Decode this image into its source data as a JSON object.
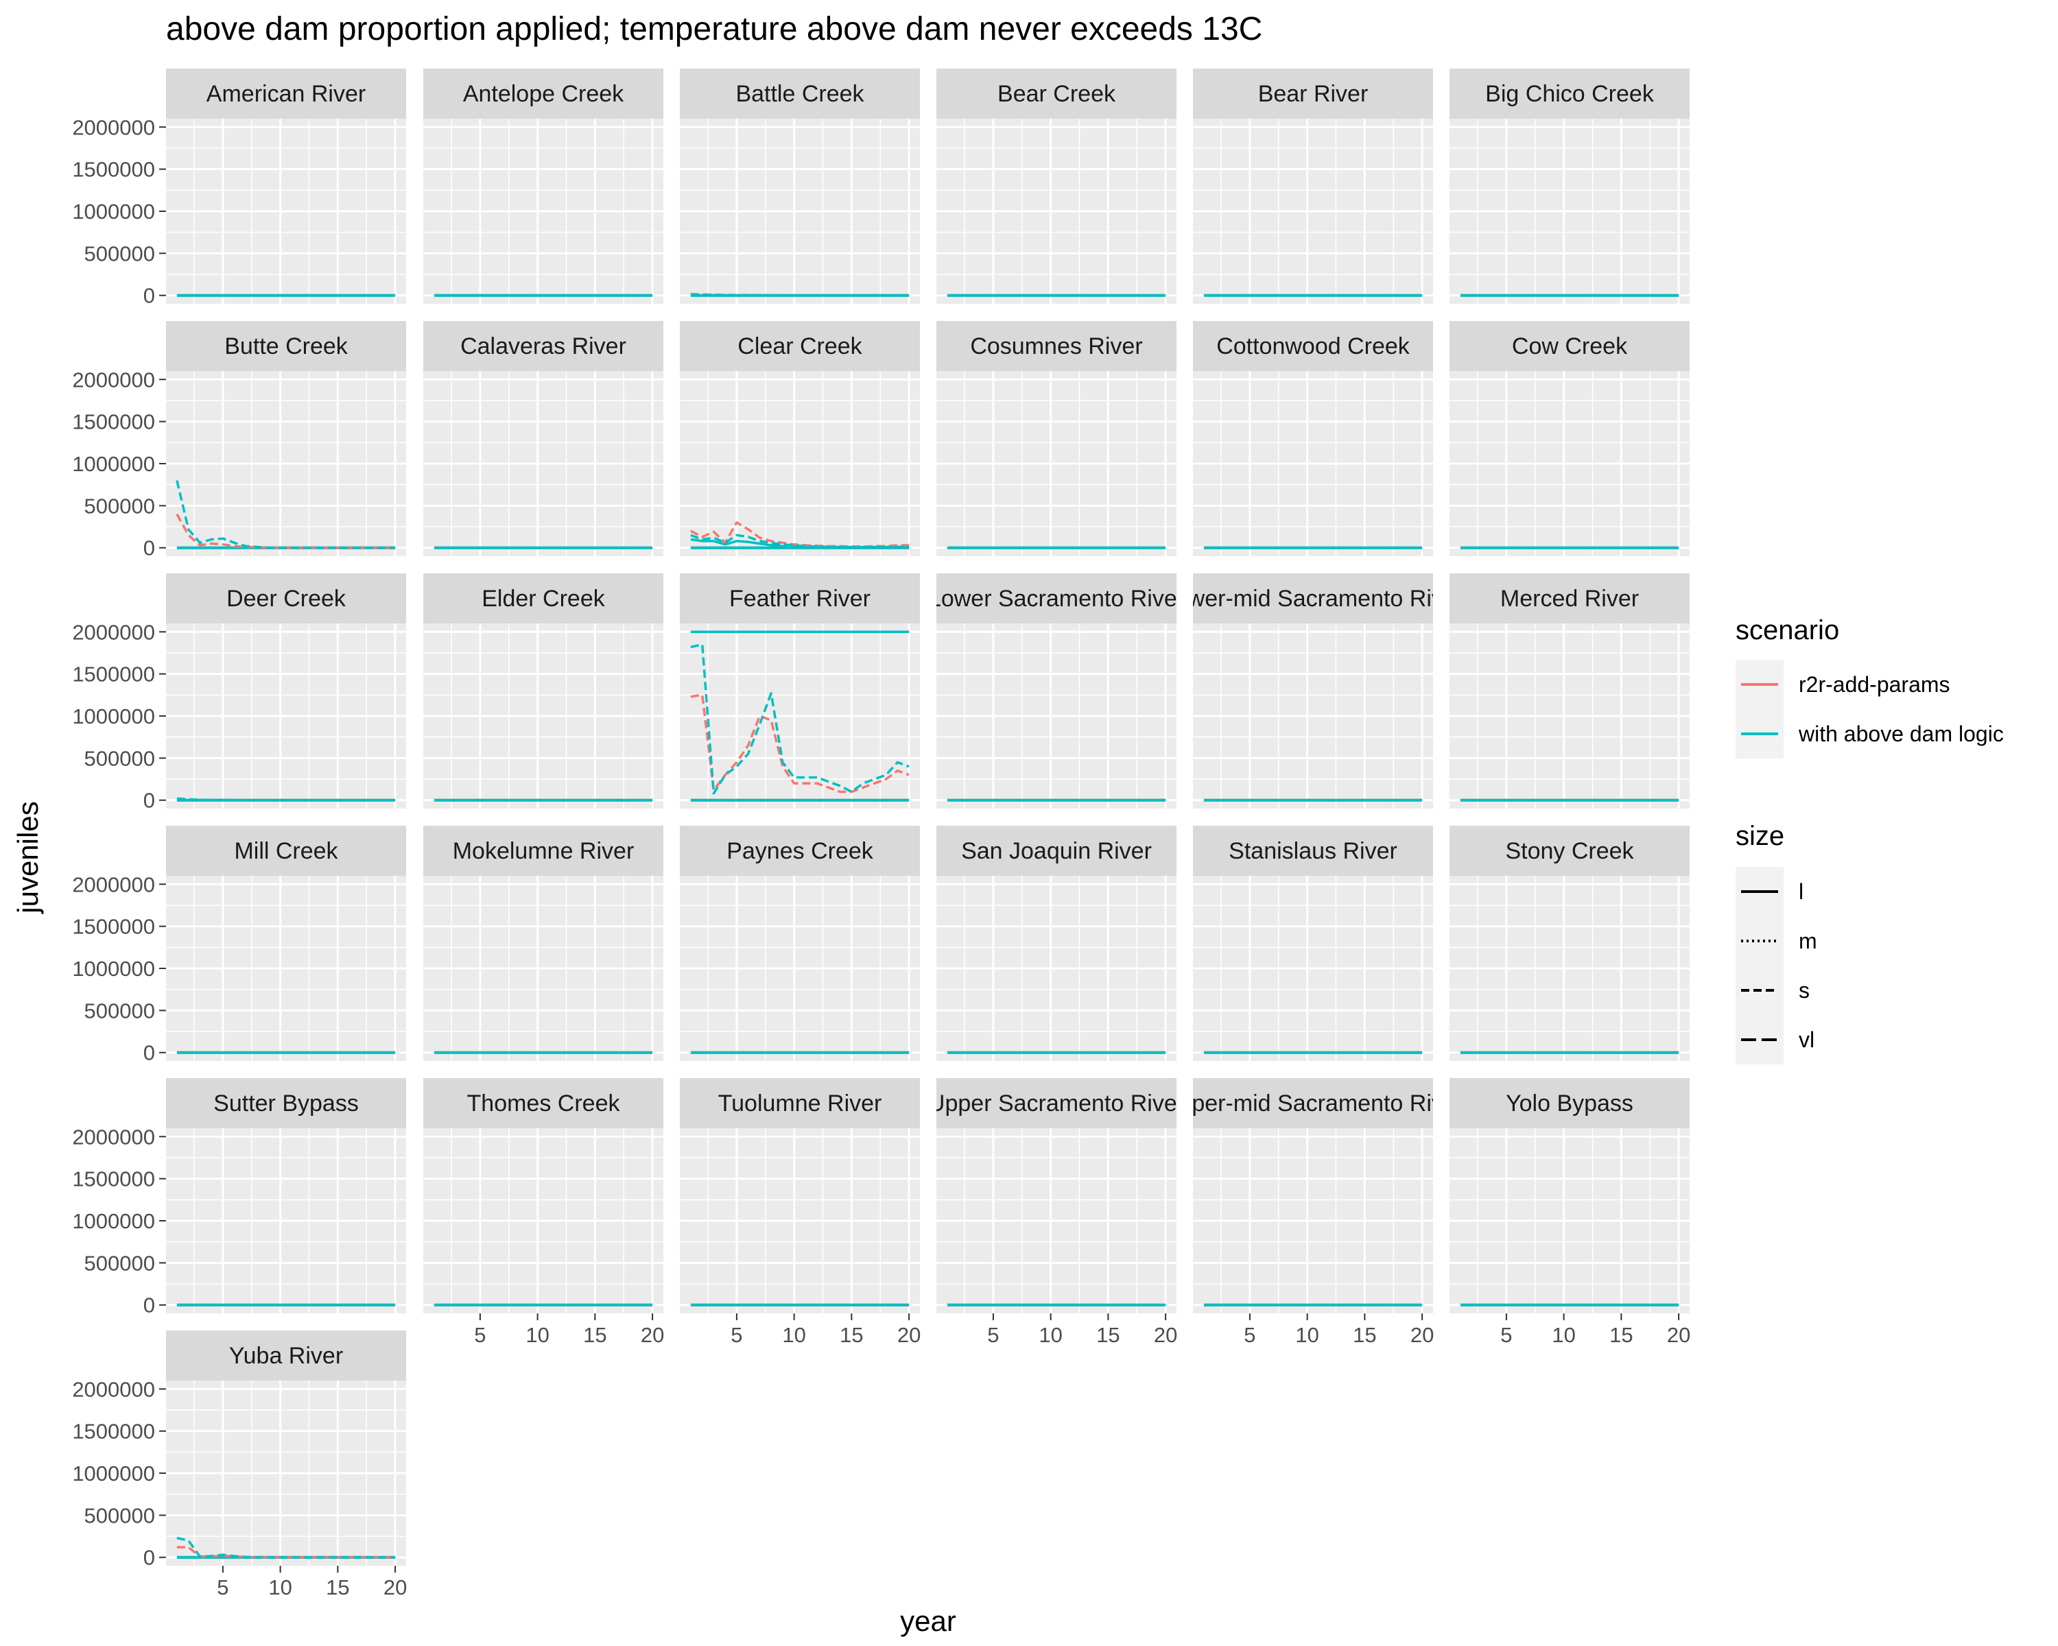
{
  "chart_data": {
    "type": "line",
    "title": "above dam proportion applied; temperature above dam never exceeds 13C",
    "xlabel": "year",
    "ylabel": "juveniles",
    "xlim": [
      0.05,
      20.95
    ],
    "ylim": [
      -100000,
      2100000
    ],
    "x_ticks": [
      5,
      10,
      15,
      20
    ],
    "y_ticks": [
      0,
      500000,
      1000000,
      1500000,
      2000000
    ],
    "grid": true,
    "facet_columns": 6,
    "legend_placement": "right",
    "legends": {
      "scenario": {
        "title": "scenario",
        "entries": [
          {
            "label": "r2r-add-params",
            "color": "#F8766D"
          },
          {
            "label": "with above dam logic",
            "color": "#00BFC4"
          }
        ]
      },
      "size": {
        "title": "size",
        "entries": [
          {
            "label": "l",
            "dash": "solid"
          },
          {
            "label": "m",
            "dash": "dotted"
          },
          {
            "label": "s",
            "dash": "dashed"
          },
          {
            "label": "vl",
            "dash": "longdash"
          }
        ]
      }
    },
    "panels": [
      {
        "name": "American River",
        "series": []
      },
      {
        "name": "Antelope Creek",
        "series": []
      },
      {
        "name": "Battle Creek",
        "series": [
          {
            "scenario": "with above dam logic",
            "size": "s",
            "x": [
              1,
              2,
              3,
              4,
              5,
              6,
              7,
              8,
              9,
              10,
              11,
              12,
              13,
              14,
              15,
              16,
              17,
              18,
              19,
              20
            ],
            "y": [
              15000,
              10000,
              8000,
              5000,
              4000,
              3000,
              2000,
              1000,
              0,
              0,
              0,
              0,
              0,
              0,
              0,
              0,
              0,
              0,
              0,
              0
            ]
          }
        ]
      },
      {
        "name": "Bear Creek",
        "series": []
      },
      {
        "name": "Bear River",
        "series": []
      },
      {
        "name": "Big Chico Creek",
        "series": []
      },
      {
        "name": "Butte Creek",
        "series": [
          {
            "scenario": "r2r-add-params",
            "size": "s",
            "x": [
              1,
              2,
              3,
              4,
              5,
              6,
              7,
              8,
              9,
              10,
              11,
              12,
              13,
              14,
              15,
              16,
              17,
              18,
              19,
              20
            ],
            "y": [
              400000,
              150000,
              30000,
              50000,
              40000,
              20000,
              10000,
              5000,
              0,
              0,
              0,
              0,
              0,
              0,
              0,
              0,
              0,
              0,
              0,
              0
            ]
          },
          {
            "scenario": "with above dam logic",
            "size": "s",
            "x": [
              1,
              2,
              3,
              4,
              5,
              6,
              7,
              8,
              9,
              10,
              11,
              12,
              13,
              14,
              15,
              16,
              17,
              18,
              19,
              20
            ],
            "y": [
              800000,
              220000,
              60000,
              100000,
              110000,
              60000,
              20000,
              10000,
              0,
              0,
              0,
              0,
              0,
              0,
              0,
              0,
              0,
              0,
              0,
              0
            ]
          }
        ]
      },
      {
        "name": "Calaveras River",
        "series": []
      },
      {
        "name": "Clear Creek",
        "series": [
          {
            "scenario": "r2r-add-params",
            "size": "s",
            "x": [
              1,
              2,
              3,
              4,
              5,
              6,
              7,
              8,
              9,
              10,
              11,
              12,
              13,
              14,
              15,
              16,
              17,
              18,
              19,
              20
            ],
            "y": [
              200000,
              130000,
              190000,
              60000,
              300000,
              220000,
              120000,
              80000,
              60000,
              40000,
              30000,
              25000,
              20000,
              18000,
              15000,
              15000,
              20000,
              20000,
              30000,
              30000
            ]
          },
          {
            "scenario": "with above dam logic",
            "size": "s",
            "x": [
              1,
              2,
              3,
              4,
              5,
              6,
              7,
              8,
              9,
              10,
              11,
              12,
              13,
              14,
              15,
              16,
              17,
              18,
              19,
              20
            ],
            "y": [
              150000,
              100000,
              120000,
              60000,
              150000,
              130000,
              80000,
              60000,
              40000,
              30000,
              20000,
              15000,
              12000,
              10000,
              8000,
              8000,
              10000,
              10000,
              12000,
              12000
            ]
          },
          {
            "scenario": "with above dam logic",
            "size": "l",
            "x": [
              1,
              2,
              3,
              4,
              5,
              6,
              7,
              8,
              9,
              10,
              11,
              12,
              13,
              14,
              15,
              16,
              17,
              18,
              19,
              20
            ],
            "y": [
              100000,
              80000,
              80000,
              40000,
              80000,
              70000,
              50000,
              30000,
              20000,
              15000,
              10000,
              8000,
              6000,
              5000,
              4000,
              4000,
              5000,
              5000,
              6000,
              6000
            ]
          }
        ]
      },
      {
        "name": "Cosumnes River",
        "series": []
      },
      {
        "name": "Cottonwood Creek",
        "series": []
      },
      {
        "name": "Cow Creek",
        "series": []
      },
      {
        "name": "Deer Creek",
        "series": [
          {
            "scenario": "with above dam logic",
            "size": "s",
            "x": [
              1,
              2,
              3,
              4,
              5,
              6,
              7,
              8,
              9,
              10,
              11,
              12,
              13,
              14,
              15,
              16,
              17,
              18,
              19,
              20
            ],
            "y": [
              20000,
              10000,
              5000,
              3000,
              2000,
              1000,
              0,
              0,
              0,
              0,
              0,
              0,
              0,
              0,
              0,
              0,
              0,
              0,
              0,
              0
            ]
          }
        ]
      },
      {
        "name": "Elder Creek",
        "series": []
      },
      {
        "name": "Feather River",
        "series": [
          {
            "scenario": "with above dam logic",
            "size": "l",
            "x": [
              1,
              20
            ],
            "y": [
              2000000,
              2000000
            ]
          },
          {
            "scenario": "r2r-add-params",
            "size": "s",
            "x": [
              1,
              2,
              3,
              4,
              5,
              6,
              7,
              8,
              9,
              10,
              11,
              12,
              13,
              14,
              15,
              16,
              17,
              18,
              19,
              20
            ],
            "y": [
              1230000,
              1250000,
              120000,
              300000,
              450000,
              650000,
              1000000,
              950000,
              400000,
              200000,
              200000,
              200000,
              150000,
              100000,
              100000,
              150000,
              200000,
              250000,
              350000,
              300000
            ]
          },
          {
            "scenario": "with above dam logic",
            "size": "s",
            "x": [
              1,
              2,
              3,
              4,
              5,
              6,
              7,
              8,
              9,
              10,
              11,
              12,
              13,
              14,
              15,
              16,
              17,
              18,
              19,
              20
            ],
            "y": [
              1820000,
              1850000,
              80000,
              300000,
              400000,
              550000,
              900000,
              1270000,
              450000,
              270000,
              270000,
              270000,
              220000,
              170000,
              100000,
              200000,
              250000,
              300000,
              450000,
              400000
            ]
          },
          {
            "scenario": "with above dam logic",
            "size": "vl",
            "x": [
              1,
              20
            ],
            "y": [
              0,
              0
            ]
          }
        ]
      },
      {
        "name": "Lower Sacramento River",
        "series": []
      },
      {
        "name": "Lower-mid Sacramento River",
        "series": []
      },
      {
        "name": "Merced River",
        "series": []
      },
      {
        "name": "Mill Creek",
        "series": []
      },
      {
        "name": "Mokelumne River",
        "series": []
      },
      {
        "name": "Paynes Creek",
        "series": []
      },
      {
        "name": "San Joaquin River",
        "series": []
      },
      {
        "name": "Stanislaus River",
        "series": []
      },
      {
        "name": "Stony Creek",
        "series": []
      },
      {
        "name": "Sutter Bypass",
        "series": []
      },
      {
        "name": "Thomes Creek",
        "series": []
      },
      {
        "name": "Tuolumne River",
        "series": []
      },
      {
        "name": "Upper Sacramento River",
        "series": []
      },
      {
        "name": "Upper-mid Sacramento River",
        "series": []
      },
      {
        "name": "Yolo Bypass",
        "series": []
      },
      {
        "name": "Yuba River",
        "series": [
          {
            "scenario": "r2r-add-params",
            "size": "s",
            "x": [
              1,
              2,
              3,
              4,
              5,
              6,
              7,
              8,
              9,
              10,
              11,
              12,
              13,
              14,
              15,
              16,
              17,
              18,
              19,
              20
            ],
            "y": [
              120000,
              120000,
              10000,
              10000,
              20000,
              10000,
              5000,
              0,
              0,
              0,
              0,
              0,
              0,
              0,
              0,
              0,
              0,
              0,
              0,
              0
            ]
          },
          {
            "scenario": "with above dam logic",
            "size": "s",
            "x": [
              1,
              2,
              3,
              4,
              5,
              6,
              7,
              8,
              9,
              10,
              11,
              12,
              13,
              14,
              15,
              16,
              17,
              18,
              19,
              20
            ],
            "y": [
              230000,
              200000,
              10000,
              15000,
              30000,
              15000,
              5000,
              0,
              0,
              0,
              0,
              0,
              0,
              0,
              0,
              0,
              0,
              0,
              0,
              0
            ]
          }
        ]
      }
    ]
  }
}
